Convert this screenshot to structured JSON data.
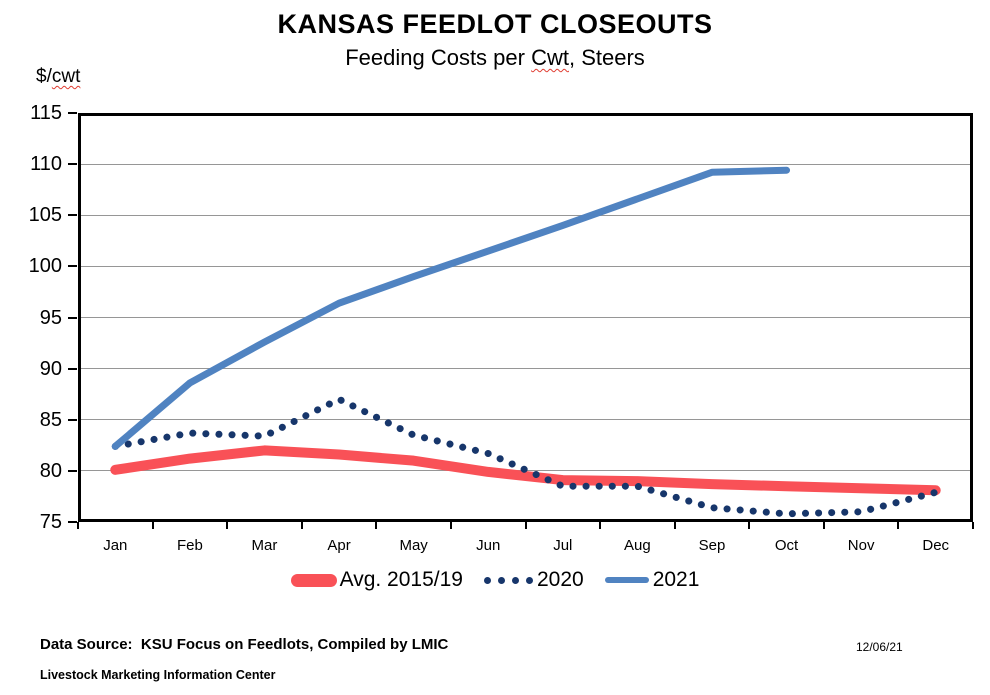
{
  "header": {
    "title": "KANSAS FEEDLOT CLOSEOUTS",
    "subtitle_before": "Feeding Costs per ",
    "subtitle_wavy": "Cwt",
    "subtitle_after": ", Steers",
    "y_unit_before": "$/",
    "y_unit_wavy": "cwt"
  },
  "chart_data": {
    "type": "line",
    "title": "KANSAS FEEDLOT CLOSEOUTS",
    "subtitle": "Feeding Costs per Cwt, Steers",
    "ylabel": "$/cwt",
    "xlabel": "",
    "ylim": [
      75,
      115
    ],
    "ytick_step": 5,
    "grid": "horizontal",
    "legend_position": "bottom",
    "categories": [
      "Jan",
      "Feb",
      "Mar",
      "Apr",
      "May",
      "Jun",
      "Jul",
      "Aug",
      "Sep",
      "Oct",
      "Nov",
      "Dec"
    ],
    "series": [
      {
        "name": "Avg. 2015/19",
        "color": "#F95157",
        "style": "solid",
        "stroke_width": 10,
        "values": [
          80.1,
          81.2,
          82.0,
          81.6,
          81.0,
          79.9,
          79.1,
          79.0,
          78.7,
          78.5,
          78.3,
          78.1
        ]
      },
      {
        "name": "2020",
        "color": "#17366B",
        "style": "dotted",
        "stroke_width": 7,
        "values": [
          82.4,
          83.7,
          83.4,
          87.0,
          83.5,
          81.7,
          78.5,
          78.5,
          76.4,
          75.8,
          76.0,
          77.9
        ]
      },
      {
        "name": "2021",
        "color": "#5083C1",
        "style": "solid",
        "stroke_width": 7,
        "values": [
          82.4,
          88.6,
          92.6,
          96.4,
          99.0,
          101.5,
          104.0,
          106.6,
          109.2,
          109.4,
          null,
          null
        ]
      }
    ]
  },
  "footer": {
    "data_source": "Data Source:  KSU Focus on Feedlots, Compiled by LMIC",
    "org": "Livestock Marketing Information Center",
    "date": "12/06/21"
  }
}
